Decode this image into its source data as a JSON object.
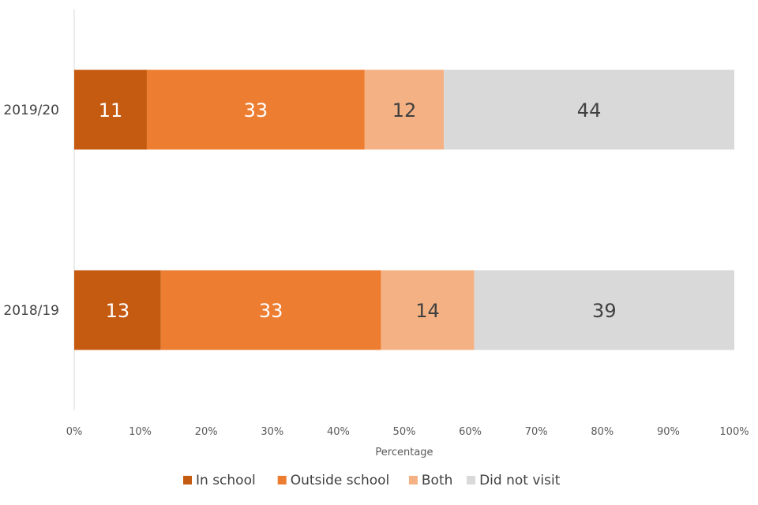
{
  "chart_data": {
    "type": "bar",
    "orientation": "horizontal",
    "stacked": true,
    "percent_stacked": true,
    "categories": [
      "2019/20",
      "2018/19"
    ],
    "series": [
      {
        "name": "In school",
        "values": [
          11,
          13
        ],
        "color": "#C55A11"
      },
      {
        "name": "Outside school",
        "values": [
          33,
          33
        ],
        "color": "#ED7D31"
      },
      {
        "name": "Both",
        "values": [
          12,
          14
        ],
        "color": "#F4B183"
      },
      {
        "name": "Did not visit",
        "values": [
          44,
          39
        ],
        "color": "#D9D9D9"
      }
    ],
    "label_colors": {
      "In school": "#FFFFFF",
      "Outside school": "#FFFFFF",
      "Both": "#404040",
      "Did not visit": "#404040"
    },
    "xlabel": "Percentage",
    "ylabel": "",
    "xlim": [
      0,
      100
    ],
    "xticks": [
      "0%",
      "10%",
      "20%",
      "30%",
      "40%",
      "50%",
      "60%",
      "70%",
      "80%",
      "90%",
      "100%"
    ],
    "grid": false,
    "legend_position": "bottom"
  }
}
